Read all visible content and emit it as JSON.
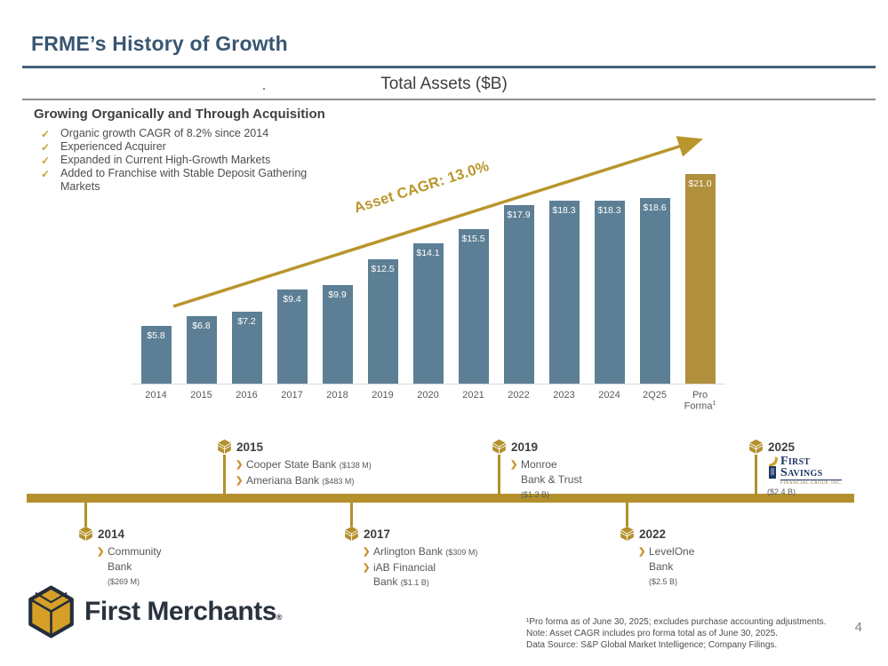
{
  "slide": {
    "title": "FRME’s History of Growth",
    "chart_title": "Total Assets ($B)",
    "stray_dot": ".",
    "page_number": "4"
  },
  "colors": {
    "navy": "#395672",
    "gold": "#b3902c",
    "bar_blue": "#5c7f95",
    "proforma_gold": "#b08f3d"
  },
  "highlights": {
    "heading": "Growing Organically and Through Acquisition",
    "check_glyph": "✓",
    "bullets": [
      "Organic growth CAGR of 8.2% since 2014",
      "Experienced Acquirer",
      "Expanded in Current High-Growth Markets",
      "Added to Franchise with Stable Deposit Gathering\nMarkets"
    ]
  },
  "chart_data": {
    "type": "bar",
    "title": "Total Assets ($B)",
    "categories": [
      "2014",
      "2015",
      "2016",
      "2017",
      "2018",
      "2019",
      "2020",
      "2021",
      "2022",
      "2023",
      "2024",
      "2Q25",
      "Pro Forma"
    ],
    "values": [
      5.8,
      6.8,
      7.2,
      9.4,
      9.9,
      12.5,
      14.1,
      15.5,
      17.9,
      18.3,
      18.3,
      18.6,
      21.0
    ],
    "labels": [
      "$5.8",
      "$6.8",
      "$7.2",
      "$9.4",
      "$9.9",
      "$12.5",
      "$14.1",
      "$15.5",
      "$17.9",
      "$18.3",
      "$18.3",
      "$18.6",
      "$21.0"
    ],
    "last_category_footnote": "1",
    "bar_color": "#5c7f95",
    "highlight_index": 12,
    "highlight_bar_color": "#b08f3d",
    "annotation": "Asset CAGR: 13.0%",
    "ylim": [
      0,
      21.5
    ],
    "grid": false,
    "legend": "none"
  },
  "timeline": {
    "bullet_glyph": "❯",
    "above": [
      {
        "year": "2015",
        "items": [
          {
            "name": "Cooper State Bank ",
            "amount": "($138 M)"
          },
          {
            "name": "Ameriana Bank ",
            "amount": "($483 M)"
          }
        ]
      },
      {
        "year": "2019",
        "items": [
          {
            "name": "Monroe\nBank & Trust\n",
            "amount": "($1.3 B)"
          }
        ]
      },
      {
        "year": "2025",
        "logo_line1": "First",
        "logo_line2": "Savings",
        "logo_sub": "Financial Group, Inc.",
        "amount": "($2.4 B)"
      }
    ],
    "below": [
      {
        "year": "2014",
        "items": [
          {
            "name": "Community\nBank\n",
            "amount": "($269 M)"
          }
        ]
      },
      {
        "year": "2017",
        "items": [
          {
            "name": "Arlington Bank ",
            "amount": "($309 M)"
          },
          {
            "name": "iAB Financial\nBank ",
            "amount": "($1.1 B)"
          }
        ]
      },
      {
        "year": "2022",
        "items": [
          {
            "name": "LevelOne\nBank\n",
            "amount": "($2.5 B)"
          }
        ]
      }
    ]
  },
  "footer": {
    "brand": "First Merchants",
    "brand_reg": "®",
    "footnote1": "¹Pro forma as of June 30, 2025; excludes purchase accounting adjustments.",
    "note": "Note: Asset CAGR includes pro forma total as of June 30, 2025.",
    "source": "Data Source: S&P Global Market Intelligence; Company Filings."
  }
}
